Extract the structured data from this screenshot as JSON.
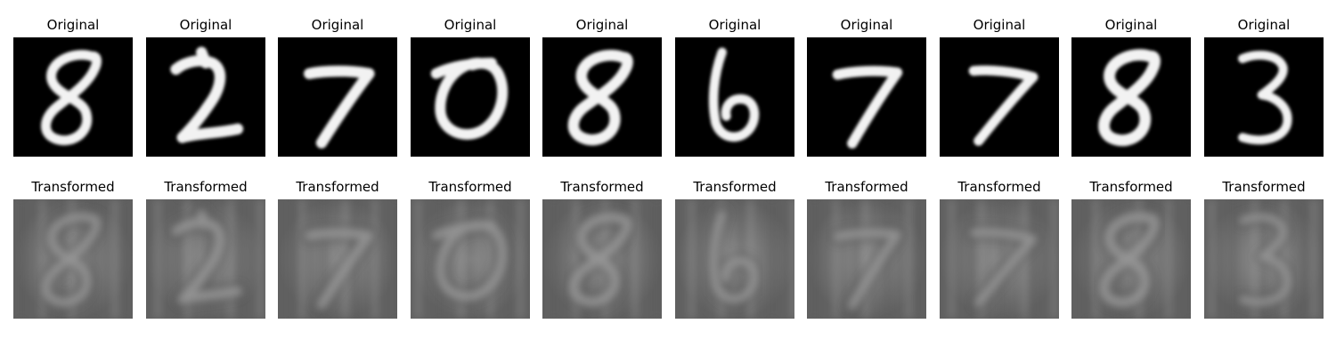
{
  "row_original": {
    "title": "Original",
    "background": "#000000",
    "stroke": "#f2f2f2",
    "digits": [
      "8",
      "2",
      "7",
      "0",
      "8",
      "6",
      "7",
      "7",
      "8",
      "3"
    ]
  },
  "row_transformed": {
    "title": "Transformed",
    "background": "#7a7a7a",
    "stroke": "#a8a8a8",
    "shadow": "#4d4d4d",
    "digits": [
      "8",
      "2",
      "7",
      "0",
      "8",
      "6",
      "7",
      "7",
      "8",
      "3"
    ]
  }
}
